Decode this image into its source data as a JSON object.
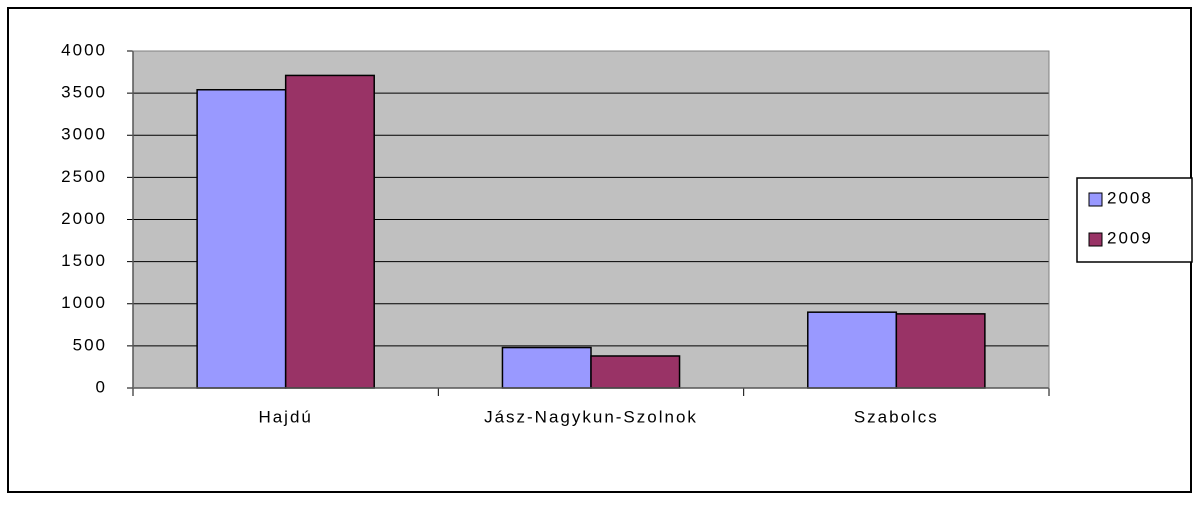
{
  "chart_data": {
    "type": "bar",
    "categories": [
      "Hajdú",
      "Jász-Nagykun-Szolnok",
      "Szabolcs"
    ],
    "series": [
      {
        "name": "2008",
        "color": "#9999ff",
        "values": [
          3540,
          480,
          900
        ]
      },
      {
        "name": "2009",
        "color": "#993366",
        "values": [
          3710,
          380,
          880
        ]
      }
    ],
    "ylim": [
      0,
      4000
    ],
    "yticks": [
      0,
      500,
      1000,
      1500,
      2000,
      2500,
      3000,
      3500,
      4000
    ],
    "grid": true,
    "plot_background": "#c0c0c0",
    "legend": "right"
  }
}
